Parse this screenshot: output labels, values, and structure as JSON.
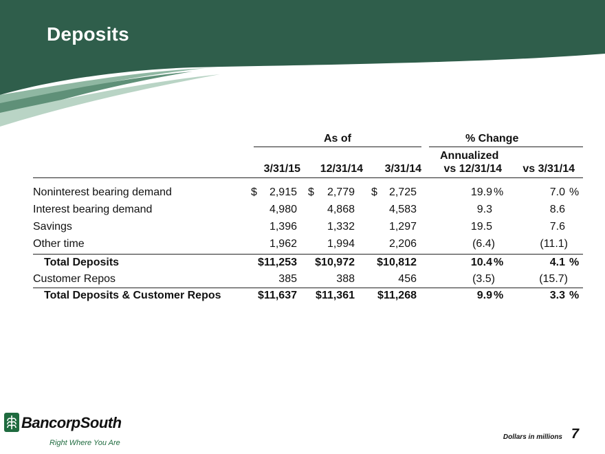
{
  "title": "Deposits",
  "colors": {
    "banner_dark": "#2f5e4b",
    "banner_light": "#8fb7a2",
    "brand_green": "#1f6b3f"
  },
  "headers": {
    "as_of": "As of",
    "pct_change": "% Change",
    "annualized": "Annualized",
    "columns": [
      "3/31/15",
      "12/31/14",
      "3/31/14",
      "vs 12/31/14",
      "vs 3/31/14"
    ]
  },
  "rows": [
    {
      "label": "Noninterest bearing demand",
      "dollar": "$",
      "v1": "2,915",
      "v2": "2,779",
      "v3": "2,725",
      "p1": "19.9",
      "p1_unit": "%",
      "p2": "7.0",
      "p2_unit": "%"
    },
    {
      "label": "Interest bearing demand",
      "v1": "4,980",
      "v2": "4,868",
      "v3": "4,583",
      "p1": "9.3",
      "p2": "8.6"
    },
    {
      "label": "Savings",
      "v1": "1,396",
      "v2": "1,332",
      "v3": "1,297",
      "p1": "19.5",
      "p2": "7.6"
    },
    {
      "label": "Other time",
      "v1": "1,962",
      "v2": "1,994",
      "v3": "2,206",
      "p1": "(6.4)",
      "p2": "(11.1)"
    },
    {
      "label": "Total Deposits",
      "v1": "$11,253",
      "v2": "$10,972",
      "v3": "$10,812",
      "p1": "10.4",
      "p1_unit": "%",
      "p2": "4.1",
      "p2_unit": "%"
    },
    {
      "label": "Customer Repos",
      "v1": "385",
      "v2": "388",
      "v3": "456",
      "p1": "(3.5)",
      "p2": "(15.7)"
    },
    {
      "label": "Total Deposits & Customer Repos",
      "v1": "$11,637",
      "v2": "$11,361",
      "v3": "$11,268",
      "p1": "9.9",
      "p1_unit": "%",
      "p2": "3.3",
      "p2_unit": "%"
    }
  ],
  "footer": {
    "note": "Dollars in millions",
    "page_number": "7"
  },
  "logo": {
    "name": "BancorpSouth",
    "tagline": "Right Where You Are"
  }
}
